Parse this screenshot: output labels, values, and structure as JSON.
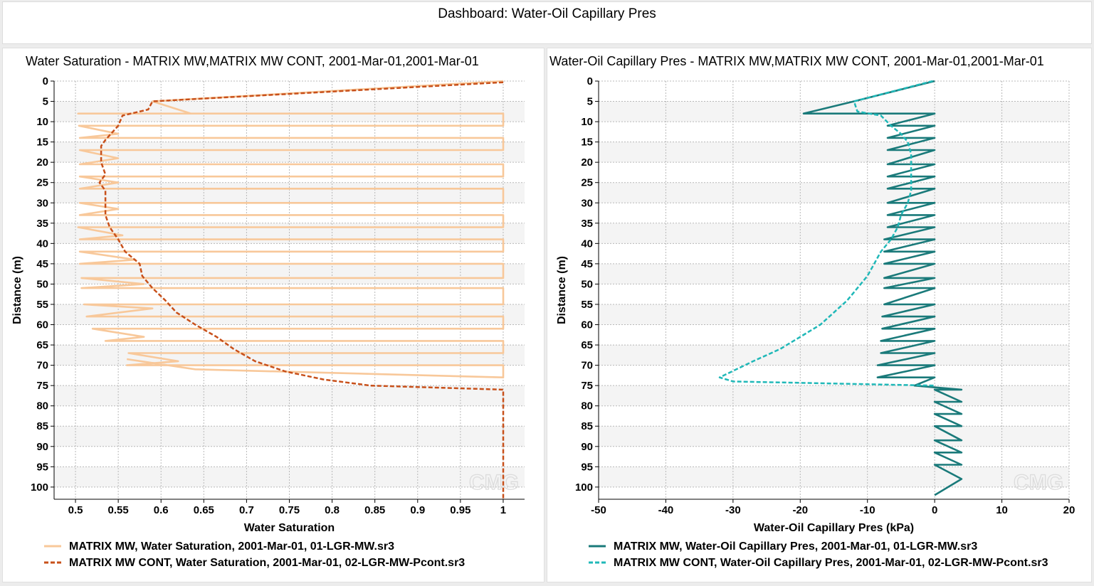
{
  "dashboard": {
    "title": "Dashboard: Water-Oil Capillary Pres"
  },
  "watermark": "CMG",
  "chart_data": [
    {
      "type": "line",
      "title": "Water Saturation - MATRIX MW,MATRIX MW CONT, 2001-Mar-01,2001-Mar-01",
      "xlabel": "Water Saturation",
      "ylabel": "Distance (m)",
      "xlim": [
        0.475,
        1.025
      ],
      "ylim": [
        0,
        103
      ],
      "y_inverted": true,
      "grid": true,
      "legend_position": "bottom",
      "x_ticks": [
        "0.5",
        "0.55",
        "0.6",
        "0.65",
        "0.7",
        "0.75",
        "0.8",
        "0.85",
        "0.9",
        "0.95",
        "1"
      ],
      "y_ticks": [
        "0",
        "5",
        "10",
        "15",
        "20",
        "25",
        "30",
        "35",
        "40",
        "45",
        "50",
        "55",
        "60",
        "65",
        "70",
        "75",
        "80",
        "85",
        "90",
        "95",
        "100"
      ],
      "series": [
        {
          "name": "MATRIX MW, Water Saturation, 2001-Mar-01, 01-LGR-MW.sr3",
          "color": "#f8c89a",
          "style": "solid",
          "points": [
            [
              1,
              0
            ],
            [
              0.59,
              5
            ],
            [
              0.635,
              8
            ],
            [
              0.503,
              8
            ],
            [
              1,
              8
            ],
            [
              1,
              11
            ],
            [
              0.504,
              11
            ],
            [
              0.55,
              13
            ],
            [
              0.505,
              14
            ],
            [
              1,
              14
            ],
            [
              1,
              17
            ],
            [
              0.505,
              17
            ],
            [
              0.55,
              19
            ],
            [
              0.505,
              20.5
            ],
            [
              1,
              20.5
            ],
            [
              1,
              23.5
            ],
            [
              0.505,
              23.5
            ],
            [
              0.55,
              25
            ],
            [
              0.505,
              26.5
            ],
            [
              1,
              26.5
            ],
            [
              1,
              30
            ],
            [
              0.505,
              30
            ],
            [
              0.55,
              31.5
            ],
            [
              0.505,
              33
            ],
            [
              1,
              33
            ],
            [
              1,
              36
            ],
            [
              0.503,
              36
            ],
            [
              0.555,
              38
            ],
            [
              0.505,
              39
            ],
            [
              1,
              39
            ],
            [
              1,
              42
            ],
            [
              0.505,
              42
            ],
            [
              0.57,
              44
            ],
            [
              0.505,
              45
            ],
            [
              1,
              45
            ],
            [
              1,
              48.5
            ],
            [
              0.507,
              48.5
            ],
            [
              0.58,
              50
            ],
            [
              0.507,
              51
            ],
            [
              1,
              51
            ],
            [
              1,
              55
            ],
            [
              0.51,
              55
            ],
            [
              0.59,
              56
            ],
            [
              0.513,
              58
            ],
            [
              1,
              58
            ],
            [
              1,
              61
            ],
            [
              0.52,
              61
            ],
            [
              0.58,
              63
            ],
            [
              0.535,
              64
            ],
            [
              1,
              64
            ],
            [
              1,
              67
            ],
            [
              0.562,
              67
            ],
            [
              0.62,
              69
            ],
            [
              0.56,
              70
            ],
            [
              1,
              70
            ],
            [
              1,
              73
            ],
            [
              0.64,
              71
            ],
            [
              0.56,
              68.5
            ]
          ]
        },
        {
          "name": "MATRIX MW CONT, Water Saturation, 2001-Mar-01, 02-LGR-MW-Pcont.sr3",
          "color": "#c8501a",
          "style": "dashed",
          "points": [
            [
              1,
              0.3
            ],
            [
              0.59,
              5
            ],
            [
              0.585,
              7
            ],
            [
              0.555,
              8.5
            ],
            [
              0.55,
              11
            ],
            [
              0.535,
              14.5
            ],
            [
              0.53,
              16
            ],
            [
              0.53,
              18.5
            ],
            [
              0.53,
              20
            ],
            [
              0.535,
              23
            ],
            [
              0.528,
              25
            ],
            [
              0.535,
              27
            ],
            [
              0.535,
              30
            ],
            [
              0.535,
              33
            ],
            [
              0.54,
              36
            ],
            [
              0.55,
              39
            ],
            [
              0.558,
              42
            ],
            [
              0.575,
              45
            ],
            [
              0.578,
              48
            ],
            [
              0.59,
              51
            ],
            [
              0.605,
              54
            ],
            [
              0.618,
              57
            ],
            [
              0.64,
              60
            ],
            [
              0.665,
              63
            ],
            [
              0.685,
              66
            ],
            [
              0.71,
              69
            ],
            [
              0.745,
              71.5
            ],
            [
              0.79,
              73.5
            ],
            [
              0.845,
              75
            ],
            [
              1,
              76
            ],
            [
              1,
              103
            ]
          ]
        }
      ]
    },
    {
      "type": "line",
      "title": "Water-Oil Capillary Pres - MATRIX MW,MATRIX MW CONT, 2001-Mar-01,2001-Mar-01",
      "xlabel": "Water-Oil Capillary Pres (kPa)",
      "ylabel": "Distance (m)",
      "xlim": [
        -50,
        20
      ],
      "ylim": [
        0,
        103
      ],
      "y_inverted": true,
      "grid": true,
      "legend_position": "bottom",
      "x_ticks": [
        "-50",
        "-40",
        "-30",
        "-20",
        "-10",
        "0",
        "10",
        "20"
      ],
      "y_ticks": [
        "0",
        "5",
        "10",
        "15",
        "20",
        "25",
        "30",
        "35",
        "40",
        "45",
        "50",
        "55",
        "60",
        "65",
        "70",
        "75",
        "80",
        "85",
        "90",
        "95",
        "100"
      ],
      "series": [
        {
          "name": "MATRIX MW, Water-Oil Capillary Pres, 2001-Mar-01, 01-LGR-MW.sr3",
          "color": "#1a7a7a",
          "style": "solid",
          "points": [
            [
              0,
              0
            ],
            [
              -12,
              5
            ],
            [
              -19.5,
              8
            ],
            [
              0,
              8
            ],
            [
              -7,
              11
            ],
            [
              0,
              11
            ],
            [
              -7,
              14
            ],
            [
              0,
              14
            ],
            [
              -7,
              17
            ],
            [
              0,
              17
            ],
            [
              -7,
              20.5
            ],
            [
              0,
              20.5
            ],
            [
              -7,
              23.5
            ],
            [
              0,
              23.5
            ],
            [
              -7,
              26.5
            ],
            [
              0,
              26.5
            ],
            [
              -7,
              30
            ],
            [
              0,
              30
            ],
            [
              -7,
              33
            ],
            [
              0,
              33
            ],
            [
              -7,
              36
            ],
            [
              0,
              36
            ],
            [
              -7.5,
              39
            ],
            [
              0,
              39
            ],
            [
              -7.5,
              42
            ],
            [
              0,
              42
            ],
            [
              -7.5,
              45
            ],
            [
              0,
              45
            ],
            [
              -7.5,
              48.5
            ],
            [
              0,
              48.5
            ],
            [
              -7.5,
              51
            ],
            [
              0,
              51
            ],
            [
              -7.5,
              55
            ],
            [
              0,
              55
            ],
            [
              -7.8,
              58
            ],
            [
              0,
              58
            ],
            [
              -7.8,
              61
            ],
            [
              0,
              61
            ],
            [
              -8,
              64
            ],
            [
              0,
              64
            ],
            [
              -8,
              67
            ],
            [
              0,
              67
            ],
            [
              -8.5,
              70
            ],
            [
              0,
              70
            ],
            [
              -8.5,
              73
            ],
            [
              0,
              73
            ],
            [
              -3,
              75
            ],
            [
              4,
              76
            ],
            [
              0,
              76
            ],
            [
              4,
              79
            ],
            [
              0,
              79
            ],
            [
              4,
              82
            ],
            [
              0,
              82
            ],
            [
              4,
              85
            ],
            [
              0,
              85
            ],
            [
              4,
              88.5
            ],
            [
              0,
              88.5
            ],
            [
              4,
              91.5
            ],
            [
              0,
              91.5
            ],
            [
              4,
              94.5
            ],
            [
              0,
              94.5
            ],
            [
              4,
              98
            ],
            [
              0,
              102
            ]
          ]
        },
        {
          "name": "MATRIX MW CONT, Water-Oil Capillary Pres, 2001-Mar-01, 02-LGR-MW-Pcont.sr3",
          "color": "#20b8b8",
          "style": "dashed",
          "points": [
            [
              -0.3,
              0
            ],
            [
              -12,
              5
            ],
            [
              -11.5,
              7.5
            ],
            [
              -8,
              8.5
            ],
            [
              -6.5,
              11
            ],
            [
              -5,
              13
            ],
            [
              -4,
              15
            ],
            [
              -3.5,
              18
            ],
            [
              -3.5,
              21
            ],
            [
              -3.5,
              24
            ],
            [
              -3.5,
              27
            ],
            [
              -4,
              30
            ],
            [
              -5,
              33
            ],
            [
              -5.5,
              36
            ],
            [
              -6.5,
              39
            ],
            [
              -8,
              42
            ],
            [
              -9,
              45
            ],
            [
              -10,
              48
            ],
            [
              -11.5,
              51
            ],
            [
              -13,
              54
            ],
            [
              -15,
              57
            ],
            [
              -17,
              60
            ],
            [
              -20,
              63
            ],
            [
              -23,
              66
            ],
            [
              -27,
              69
            ],
            [
              -32,
              73
            ],
            [
              -30,
              74
            ],
            [
              0,
              75
            ]
          ]
        }
      ]
    }
  ]
}
